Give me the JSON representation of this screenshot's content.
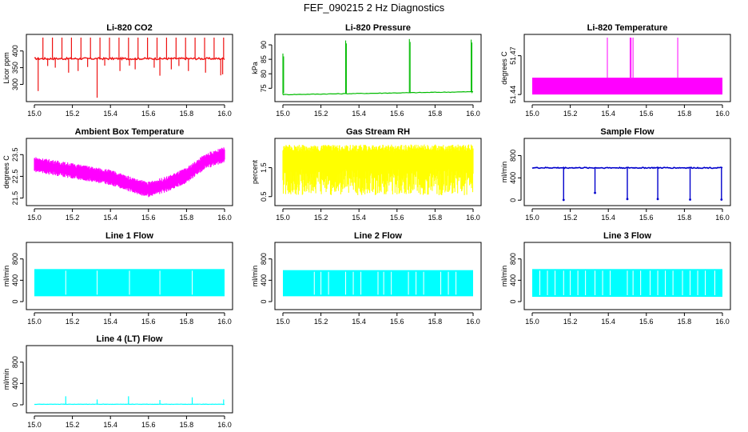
{
  "page_title": "FEF_090215  2 Hz Diagnostics",
  "chart_data": [
    {
      "type": "line",
      "title": "Li-820 CO2",
      "ylabel": "Licor ppm",
      "color": "#ee1111",
      "pattern": "co2",
      "xlim": [
        15.0,
        16.0
      ],
      "ylim": [
        258,
        440
      ],
      "x_ticks": [
        "15.0",
        "15.2",
        "15.4",
        "15.6",
        "15.8",
        "16.0"
      ],
      "y_ticks": [
        "300",
        "350",
        "400"
      ],
      "series": [
        {
          "baseline": 377,
          "spike_up": 440,
          "dips": [
            [
              15.02,
              280
            ],
            [
              15.07,
              355
            ],
            [
              15.11,
              350
            ],
            [
              15.18,
              335
            ],
            [
              15.23,
              340
            ],
            [
              15.28,
              352
            ],
            [
              15.33,
              260
            ],
            [
              15.37,
              356
            ],
            [
              15.45,
              340
            ],
            [
              15.5,
              356
            ],
            [
              15.53,
              345
            ],
            [
              15.63,
              350
            ],
            [
              15.66,
              326
            ],
            [
              15.72,
              345
            ],
            [
              15.76,
              355
            ],
            [
              15.81,
              340
            ],
            [
              15.9,
              335
            ],
            [
              15.98,
              327
            ],
            [
              15.99,
              330
            ]
          ]
        }
      ]
    },
    {
      "type": "line",
      "title": "Li-820 Pressure",
      "ylabel": "kPa",
      "color": "#00bb00",
      "pattern": "pressure",
      "xlim": [
        15.0,
        16.0
      ],
      "ylim": [
        71.5,
        92.5
      ],
      "x_ticks": [
        "15.0",
        "15.2",
        "15.4",
        "15.6",
        "15.8",
        "16.0"
      ],
      "y_ticks": [
        "75",
        "80",
        "85",
        "90"
      ],
      "series": [
        {
          "baseline_start": 72.8,
          "baseline_end": 73.8,
          "spikes": [
            [
              15.0,
              87
            ],
            [
              15.33,
              91.5
            ],
            [
              15.665,
              92
            ],
            [
              15.99,
              91.8
            ]
          ]
        }
      ]
    },
    {
      "type": "line",
      "title": "Li-820 Temperature",
      "ylabel": "degrees C",
      "color": "#ff00ff",
      "pattern": "licortemp",
      "xlim": [
        15.0,
        16.0
      ],
      "ylim": [
        51.437,
        51.484
      ],
      "x_ticks": [
        "15.0",
        "15.2",
        "15.4",
        "15.6",
        "15.8",
        "16.0"
      ],
      "y_ticks": [
        "51.44",
        "51.47"
      ],
      "series": [
        {
          "band": [
            51.44,
            51.453
          ],
          "spikes": [
            [
              15.395,
              51.484
            ],
            [
              15.515,
              51.484
            ],
            [
              15.52,
              51.484
            ],
            [
              15.53,
              51.484
            ],
            [
              15.765,
              51.484
            ]
          ]
        }
      ]
    },
    {
      "type": "line",
      "title": "Ambient Box Temperature",
      "ylabel": "degrees C",
      "color": "#ff00ff",
      "pattern": "boxtemp",
      "xlim": [
        15.0,
        16.0
      ],
      "ylim": [
        21.3,
        24.1
      ],
      "x_ticks": [
        "15.0",
        "15.2",
        "15.4",
        "15.6",
        "15.8",
        "16.0"
      ],
      "y_ticks": [
        "21.5",
        "22.5",
        "23.5"
      ],
      "series": [
        {
          "curve": [
            [
              15.0,
              23.05
            ],
            [
              15.2,
              22.75
            ],
            [
              15.4,
              22.45
            ],
            [
              15.55,
              22.0
            ],
            [
              15.6,
              21.9
            ],
            [
              15.7,
              22.15
            ],
            [
              15.8,
              22.55
            ],
            [
              15.9,
              23.2
            ],
            [
              16.0,
              23.5
            ]
          ],
          "amplitude": 0.3
        }
      ]
    },
    {
      "type": "line",
      "title": "Gas Stream RH",
      "ylabel": "percent",
      "color": "#ffff00",
      "pattern": "noise",
      "xlim": [
        15.0,
        16.0
      ],
      "ylim": [
        0.3,
        2.4
      ],
      "x_ticks": [
        "15.0",
        "15.2",
        "15.4",
        "15.6",
        "15.8",
        "16.0"
      ],
      "y_ticks": [
        "0.5",
        "1.5"
      ],
      "series": [
        {
          "band": [
            0.55,
            2.3
          ]
        }
      ]
    },
    {
      "type": "line",
      "title": "Sample Flow",
      "ylabel": "ml/min",
      "color": "#0000cc",
      "pattern": "flowdips",
      "xlim": [
        15.0,
        16.0
      ],
      "ylim": [
        -40,
        1050
      ],
      "x_ticks": [
        "15.0",
        "15.2",
        "15.4",
        "15.6",
        "15.8",
        "16.0"
      ],
      "y_ticks": [
        "0",
        "400",
        "800"
      ],
      "series": [
        {
          "baseline": 580,
          "dips": [
            [
              15.165,
              5
            ],
            [
              15.33,
              130
            ],
            [
              15.5,
              20
            ],
            [
              15.66,
              20
            ],
            [
              15.83,
              10
            ],
            [
              15.995,
              10
            ]
          ]
        }
      ]
    },
    {
      "type": "line",
      "title": "Line 1 Flow",
      "ylabel": "ml/min",
      "color": "#00ffff",
      "pattern": "switching",
      "xlim": [
        15.0,
        16.0
      ],
      "ylim": [
        -90,
        1050
      ],
      "x_ticks": [
        "15.0",
        "15.2",
        "15.4",
        "15.6",
        "15.8",
        "16.0"
      ],
      "y_ticks": [
        "0",
        "400",
        "800"
      ],
      "series": [
        {
          "band": [
            100,
            610
          ],
          "gaps": [
            15.165,
            15.33,
            15.5,
            15.66,
            15.83
          ]
        }
      ]
    },
    {
      "type": "line",
      "title": "Line 2 Flow",
      "ylabel": "ml/min",
      "color": "#00ffff",
      "pattern": "switching",
      "xlim": [
        15.0,
        16.0
      ],
      "ylim": [
        -90,
        1050
      ],
      "x_ticks": [
        "15.0",
        "15.2",
        "15.4",
        "15.6",
        "15.8",
        "16.0"
      ],
      "y_ticks": [
        "0",
        "400",
        "800"
      ],
      "series": [
        {
          "band": [
            100,
            590
          ],
          "gaps": [
            15.165,
            15.2,
            15.24,
            15.33,
            15.37,
            15.41,
            15.5,
            15.53,
            15.57,
            15.66,
            15.7,
            15.74,
            15.83,
            15.87,
            15.91
          ]
        }
      ]
    },
    {
      "type": "line",
      "title": "Line 3 Flow",
      "ylabel": "ml/min",
      "color": "#00ffff",
      "pattern": "switching",
      "xlim": [
        15.0,
        16.0
      ],
      "ylim": [
        -90,
        1050
      ],
      "x_ticks": [
        "15.0",
        "15.2",
        "15.4",
        "15.6",
        "15.8",
        "16.0"
      ],
      "y_ticks": [
        "0",
        "400",
        "800"
      ],
      "series": [
        {
          "band": [
            90,
            610
          ],
          "gaps": [
            15.04,
            15.08,
            15.12,
            15.165,
            15.2,
            15.24,
            15.28,
            15.33,
            15.37,
            15.41,
            15.5,
            15.53,
            15.57,
            15.62,
            15.66,
            15.7,
            15.74,
            15.79,
            15.83,
            15.87,
            15.91,
            15.96
          ]
        }
      ]
    },
    {
      "type": "line",
      "title": "Line 4 (LT) Flow",
      "ylabel": "ml/min",
      "color": "#00ffff",
      "pattern": "lowflat",
      "xlim": [
        15.0,
        16.0
      ],
      "ylim": [
        -90,
        1050
      ],
      "x_ticks": [
        "15.0",
        "15.2",
        "15.4",
        "15.6",
        "15.8",
        "16.0"
      ],
      "y_ticks": [
        "0",
        "400",
        "800"
      ],
      "series": [
        {
          "baseline": 10,
          "spikes": [
            [
              15.165,
              160
            ],
            [
              15.33,
              100
            ],
            [
              15.495,
              160
            ],
            [
              15.66,
              90
            ],
            [
              15.83,
              140
            ],
            [
              15.995,
              100
            ]
          ]
        }
      ]
    }
  ]
}
